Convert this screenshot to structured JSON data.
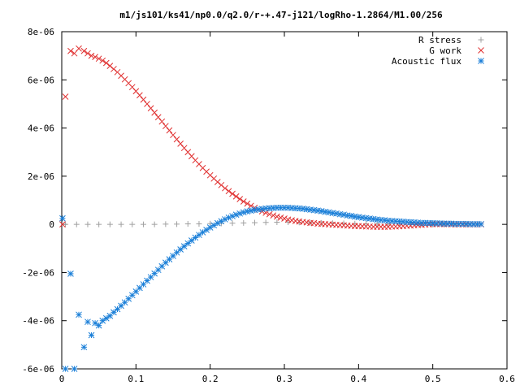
{
  "chart_data": {
    "type": "scatter",
    "title": "m1/js101/ks41/np0.0/q2.0/r-+.47-j121/logRho-1.2864/M1.00/256",
    "xlabel": "",
    "ylabel": "",
    "xlim": [
      0,
      0.6
    ],
    "ylim": [
      -6e-06,
      8e-06
    ],
    "grid": false,
    "legend_position": "top-right",
    "x_ticks": [
      0,
      0.1,
      0.2,
      0.3,
      0.4,
      0.5,
      0.6
    ],
    "x_tick_labels": [
      "0",
      "0.1",
      "0.2",
      "0.3",
      "0.4",
      "0.5",
      "0.6"
    ],
    "y_ticks": [
      -6e-06,
      -4e-06,
      -2e-06,
      0,
      2e-06,
      4e-06,
      6e-06,
      8e-06
    ],
    "y_tick_labels": [
      "-6e-06",
      "-4e-06",
      "-2e-06",
      "0",
      "2e-06",
      "4e-06",
      "6e-06",
      "8e-06"
    ],
    "series": [
      {
        "name": "R stress",
        "marker": "plus",
        "color": "#a0a0a0",
        "x": [
          0.005,
          0.02,
          0.035,
          0.05,
          0.065,
          0.08,
          0.095,
          0.11,
          0.125,
          0.14,
          0.155,
          0.17,
          0.185,
          0.2,
          0.215,
          0.23,
          0.245,
          0.26,
          0.275,
          0.29,
          0.305,
          0.32,
          0.335,
          0.35,
          0.365,
          0.38,
          0.395,
          0.41,
          0.425,
          0.44,
          0.455,
          0.47,
          0.485,
          0.5,
          0.515,
          0.53,
          0.545,
          0.56
        ],
        "y": [
          0,
          0,
          0,
          0,
          0,
          0,
          0,
          0,
          0,
          1e-08,
          1e-08,
          2e-08,
          2e-08,
          3e-08,
          4e-08,
          5e-08,
          6e-08,
          7e-08,
          8e-08,
          9e-08,
          9e-08,
          8e-08,
          7e-08,
          6e-08,
          5e-08,
          4e-08,
          3e-08,
          2e-08,
          2e-08,
          1e-08,
          1e-08,
          1e-08,
          0,
          0,
          0,
          0,
          0,
          0
        ]
      },
      {
        "name": "G work",
        "marker": "cross",
        "color": "#e03030",
        "x": [
          0.001,
          0.005,
          0.012,
          0.017,
          0.023,
          0.03,
          0.035,
          0.04,
          0.045,
          0.05,
          0.055,
          0.06,
          0.065,
          0.07,
          0.075,
          0.08,
          0.085,
          0.09,
          0.095,
          0.1,
          0.105,
          0.11,
          0.115,
          0.12,
          0.125,
          0.13,
          0.135,
          0.14,
          0.145,
          0.15,
          0.155,
          0.16,
          0.165,
          0.17,
          0.175,
          0.18,
          0.185,
          0.19,
          0.195,
          0.2,
          0.205,
          0.21,
          0.215,
          0.22,
          0.225,
          0.23,
          0.235,
          0.24,
          0.245,
          0.25,
          0.255,
          0.26,
          0.265,
          0.27,
          0.275,
          0.28,
          0.285,
          0.29,
          0.295,
          0.3,
          0.305,
          0.31,
          0.315,
          0.32,
          0.325,
          0.33,
          0.335,
          0.34,
          0.345,
          0.35,
          0.355,
          0.36,
          0.365,
          0.37,
          0.375,
          0.38,
          0.385,
          0.39,
          0.395,
          0.4,
          0.405,
          0.41,
          0.415,
          0.42,
          0.425,
          0.43,
          0.435,
          0.44,
          0.445,
          0.45,
          0.455,
          0.46,
          0.465,
          0.47,
          0.475,
          0.48,
          0.485,
          0.49,
          0.495,
          0.5,
          0.505,
          0.51,
          0.515,
          0.52,
          0.525,
          0.53,
          0.535,
          0.54,
          0.545,
          0.55,
          0.555,
          0.56,
          0.565
        ],
        "y": [
          0,
          5.3e-06,
          7.2e-06,
          7.1e-06,
          7.3e-06,
          7.2e-06,
          7.1e-06,
          7e-06,
          6.95e-06,
          6.88e-06,
          6.8e-06,
          6.7e-06,
          6.58e-06,
          6.45e-06,
          6.32e-06,
          6.17e-06,
          6.02e-06,
          5.86e-06,
          5.7e-06,
          5.53e-06,
          5.36e-06,
          5.18e-06,
          5e-06,
          4.82e-06,
          4.64e-06,
          4.45e-06,
          4.27e-06,
          4.08e-06,
          3.9e-06,
          3.71e-06,
          3.53e-06,
          3.35e-06,
          3.17e-06,
          3e-06,
          2.83e-06,
          2.66e-06,
          2.5e-06,
          2.34e-06,
          2.19e-06,
          2.04e-06,
          1.9e-06,
          1.76e-06,
          1.63e-06,
          1.5e-06,
          1.38e-06,
          1.27e-06,
          1.16e-06,
          1.05e-06,
          9.5e-07,
          8.6e-07,
          7.7e-07,
          6.9e-07,
          6.1e-07,
          5.4e-07,
          4.8e-07,
          4.2e-07,
          3.7e-07,
          3.2e-07,
          2.8e-07,
          2.4e-07,
          2e-07,
          1.7e-07,
          1.4e-07,
          1.2e-07,
          1e-07,
          8e-08,
          6e-08,
          5e-08,
          3e-08,
          2e-08,
          1e-08,
          0,
          -1e-08,
          -2e-08,
          -3e-08,
          -4e-08,
          -5e-08,
          -6e-08,
          -7e-08,
          -7e-08,
          -8e-08,
          -9e-08,
          -9e-08,
          -1e-07,
          -1e-07,
          -1e-07,
          -1e-07,
          -1e-07,
          -9e-08,
          -9e-08,
          -8e-08,
          -7e-08,
          -6e-08,
          -5e-08,
          -4e-08,
          -3e-08,
          -2e-08,
          -1e-08,
          0,
          1e-08,
          1e-08,
          1e-08,
          1e-08,
          1e-08,
          0,
          0,
          0,
          0,
          0,
          0,
          0,
          0,
          0
        ]
      },
      {
        "name": "Acoustic flux",
        "marker": "star",
        "color": "#1a7fd8",
        "x": [
          0.001,
          0.005,
          0.012,
          0.017,
          0.023,
          0.03,
          0.035,
          0.04,
          0.045,
          0.05,
          0.055,
          0.06,
          0.065,
          0.07,
          0.075,
          0.08,
          0.085,
          0.09,
          0.095,
          0.1,
          0.105,
          0.11,
          0.115,
          0.12,
          0.125,
          0.13,
          0.135,
          0.14,
          0.145,
          0.15,
          0.155,
          0.16,
          0.165,
          0.17,
          0.175,
          0.18,
          0.185,
          0.19,
          0.195,
          0.2,
          0.205,
          0.21,
          0.215,
          0.22,
          0.225,
          0.23,
          0.235,
          0.24,
          0.245,
          0.25,
          0.255,
          0.26,
          0.265,
          0.27,
          0.275,
          0.28,
          0.285,
          0.29,
          0.295,
          0.3,
          0.305,
          0.31,
          0.315,
          0.32,
          0.325,
          0.33,
          0.335,
          0.34,
          0.345,
          0.35,
          0.355,
          0.36,
          0.365,
          0.37,
          0.375,
          0.38,
          0.385,
          0.39,
          0.395,
          0.4,
          0.405,
          0.41,
          0.415,
          0.42,
          0.425,
          0.43,
          0.435,
          0.44,
          0.445,
          0.45,
          0.455,
          0.46,
          0.465,
          0.47,
          0.475,
          0.48,
          0.485,
          0.49,
          0.495,
          0.5,
          0.505,
          0.51,
          0.515,
          0.52,
          0.525,
          0.53,
          0.535,
          0.54,
          0.545,
          0.55,
          0.555,
          0.56,
          0.565
        ],
        "y": [
          2.5e-07,
          -6e-06,
          -2.05e-06,
          -6e-06,
          -3.75e-06,
          -5.1e-06,
          -4.05e-06,
          -4.6e-06,
          -4.1e-06,
          -4.2e-06,
          -4e-06,
          -3.9e-06,
          -3.8e-06,
          -3.65e-06,
          -3.52e-06,
          -3.38e-06,
          -3.24e-06,
          -3.09e-06,
          -2.94e-06,
          -2.79e-06,
          -2.64e-06,
          -2.49e-06,
          -2.34e-06,
          -2.19e-06,
          -2.04e-06,
          -1.89e-06,
          -1.74e-06,
          -1.59e-06,
          -1.45e-06,
          -1.31e-06,
          -1.17e-06,
          -1.04e-06,
          -9.1e-07,
          -7.9e-07,
          -6.7e-07,
          -5.5e-07,
          -4.4e-07,
          -3.3e-07,
          -2.3e-07,
          -1.3e-07,
          -4e-08,
          5e-08,
          1.3e-07,
          2.1e-07,
          2.8e-07,
          3.4e-07,
          4e-07,
          4.5e-07,
          5e-07,
          5.4e-07,
          5.7e-07,
          6e-07,
          6.2e-07,
          6.4e-07,
          6.6e-07,
          6.7e-07,
          6.8e-07,
          6.9e-07,
          6.9e-07,
          6.9e-07,
          6.9e-07,
          6.8e-07,
          6.7e-07,
          6.6e-07,
          6.5e-07,
          6.3e-07,
          6.1e-07,
          5.9e-07,
          5.7e-07,
          5.5e-07,
          5.2e-07,
          5e-07,
          4.7e-07,
          4.5e-07,
          4.2e-07,
          4e-07,
          3.7e-07,
          3.5e-07,
          3.2e-07,
          3e-07,
          2.8e-07,
          2.6e-07,
          2.4e-07,
          2.2e-07,
          2e-07,
          1.8e-07,
          1.7e-07,
          1.5e-07,
          1.4e-07,
          1.3e-07,
          1.2e-07,
          1.1e-07,
          1e-07,
          9e-08,
          8e-08,
          7e-08,
          6e-08,
          6e-08,
          5e-08,
          5e-08,
          4e-08,
          4e-08,
          3e-08,
          3e-08,
          3e-08,
          2e-08,
          2e-08,
          2e-08,
          2e-08,
          1e-08,
          1e-08,
          1e-08,
          1e-08
        ]
      }
    ]
  }
}
